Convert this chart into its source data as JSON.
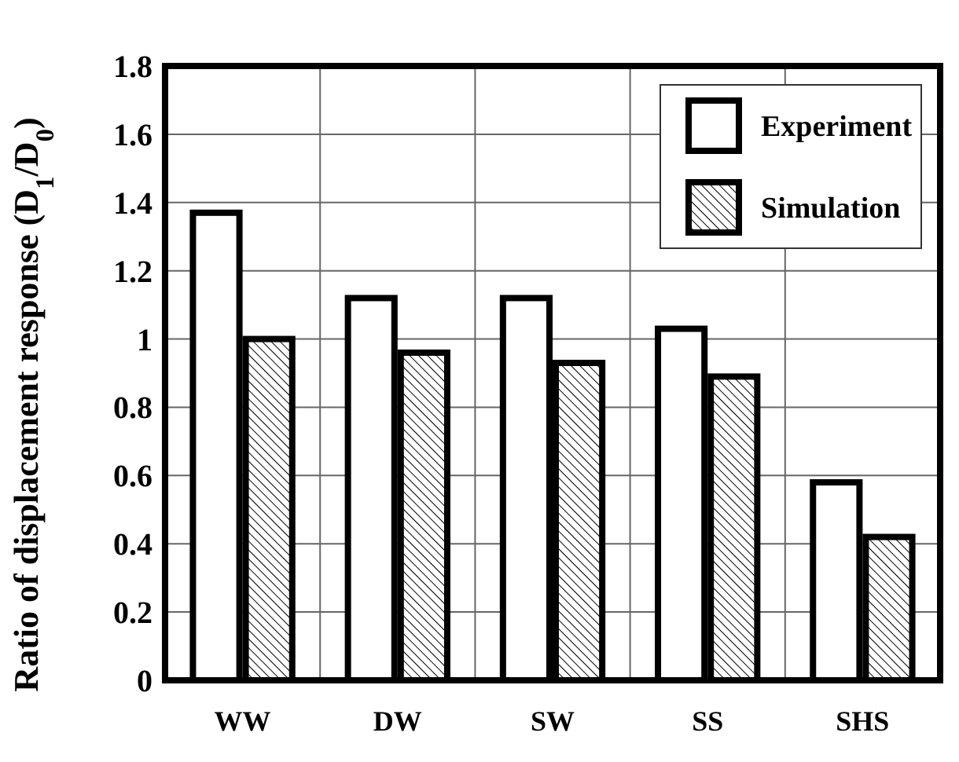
{
  "chart_data": {
    "type": "bar",
    "ylabel": "Ratio of displacement response (D$_{1}$/D$_{0}$)",
    "categories": [
      "WW",
      "DW",
      "SW",
      "SS",
      "SHS"
    ],
    "series": [
      {
        "name": "Experiment",
        "color": "#ffffff",
        "values": [
          1.37,
          1.12,
          1.12,
          1.03,
          0.58
        ]
      },
      {
        "name": "Simulation",
        "color": "#000000",
        "values": [
          1.0,
          0.96,
          0.93,
          0.89,
          0.42
        ]
      }
    ],
    "ylim": [
      0,
      1.8
    ],
    "yticks": [
      0,
      0.2,
      0.4,
      0.6,
      0.8,
      1,
      1.2,
      1.4,
      1.6,
      1.8
    ],
    "grid": true,
    "legend": "top right"
  }
}
